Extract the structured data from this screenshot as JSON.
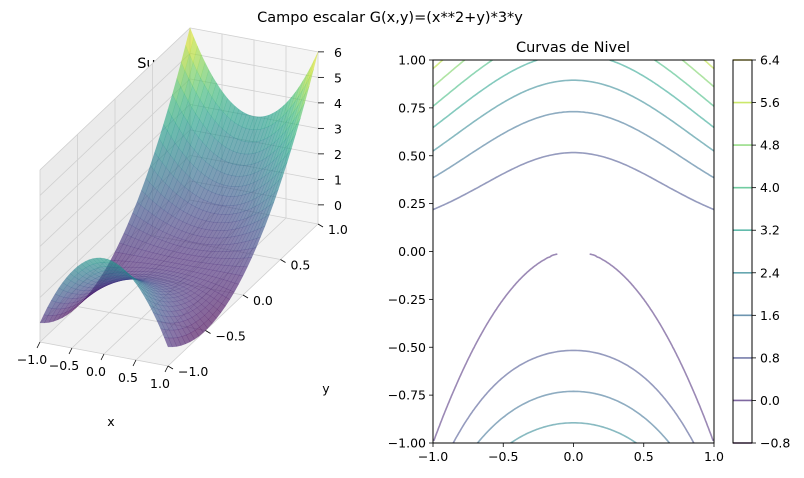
{
  "figure": {
    "suptitle": "Campo escalar G(x,y)=(x**2+y)*3*y"
  },
  "chart_data": [
    {
      "type": "surface",
      "title": "Superficie 3D",
      "xlabel": "x",
      "ylabel": "y",
      "zlabel": "",
      "xlim": [
        -1.0,
        1.0
      ],
      "ylim": [
        -1.0,
        1.0
      ],
      "zlim": [
        -0.75,
        6.0
      ],
      "xticks": [
        "−1.0",
        "−0.5",
        "0.0",
        "0.5",
        "1.0"
      ],
      "yticks": [
        "−1.0",
        "−0.5",
        "0.0",
        "0.5",
        "1.0"
      ],
      "zticks": [
        "0",
        "1",
        "2",
        "3",
        "4",
        "5",
        "6"
      ],
      "colormap": "viridis",
      "alpha": 0.5,
      "grid": true,
      "function": "G(x,y)=(x**2+y)*3*y",
      "corner_values": [
        {
          "x": -1.0,
          "y": -1.0,
          "z": 0.0
        },
        {
          "x": 1.0,
          "y": -1.0,
          "z": 0.0
        },
        {
          "x": -1.0,
          "y": 1.0,
          "z": 6.0
        },
        {
          "x": 1.0,
          "y": 1.0,
          "z": 6.0
        },
        {
          "x": 0.0,
          "y": -1.0,
          "z": 3.0
        },
        {
          "x": 0.0,
          "y": 1.0,
          "z": 3.0
        },
        {
          "x": 0.0,
          "y": 0.0,
          "z": 0.0
        }
      ]
    },
    {
      "type": "contour",
      "title": "Curvas de Nivel",
      "xlabel": "",
      "ylabel": "",
      "xlim": [
        -1.0,
        1.0
      ],
      "ylim": [
        -1.0,
        1.0
      ],
      "xticks": [
        "−1.0",
        "−0.5",
        "0.0",
        "0.5",
        "1.0"
      ],
      "yticks": [
        "−1.00",
        "−0.75",
        "−0.50",
        "−0.25",
        "0.00",
        "0.25",
        "0.50",
        "0.75",
        "1.00"
      ],
      "colormap": "viridis",
      "alpha": 0.5,
      "levels": [
        -0.8,
        0.0,
        0.8,
        1.6,
        2.4,
        3.2,
        4.0,
        4.8,
        5.6,
        6.4
      ],
      "colorbar": {
        "range": [
          -0.8,
          6.4
        ],
        "ticks": [
          "−0.8",
          "0.0",
          "0.8",
          "1.6",
          "2.4",
          "3.2",
          "4.0",
          "4.8",
          "5.6",
          "6.4"
        ],
        "colors": [
          "#440154",
          "#482878",
          "#3e4989",
          "#31688e",
          "#26828e",
          "#1f9e89",
          "#35b779",
          "#6ece58",
          "#b5de2b",
          "#fde725"
        ]
      }
    }
  ]
}
